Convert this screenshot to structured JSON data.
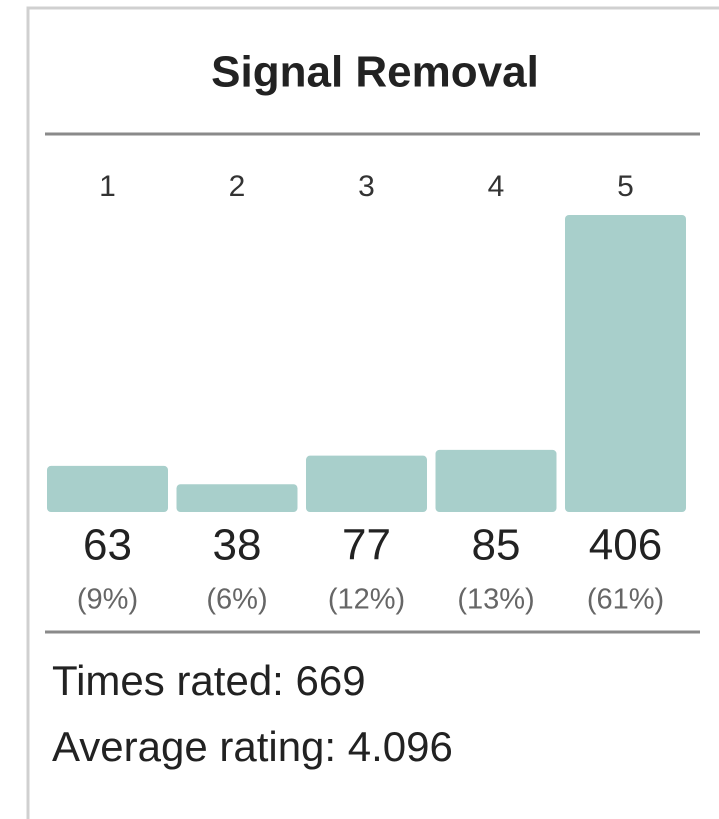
{
  "chart_data": {
    "type": "bar",
    "title": "Signal Removal",
    "categories": [
      "1",
      "2",
      "3",
      "4",
      "5"
    ],
    "values": [
      63,
      38,
      77,
      85,
      406
    ],
    "percent_labels": [
      "(9%)",
      "(6%)",
      "(12%)",
      "(13%)",
      "(61%)"
    ],
    "color": "#a8cfcb",
    "times_rated": "Times rated: 669",
    "average_rating": "Average rating: 4.096"
  }
}
